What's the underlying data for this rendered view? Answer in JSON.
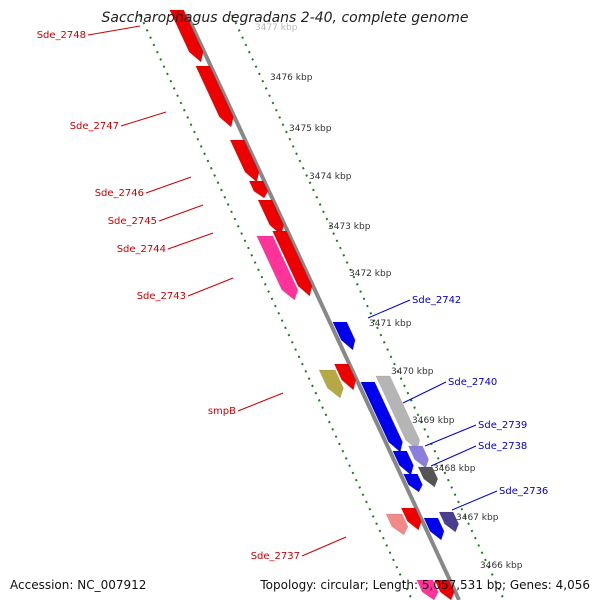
{
  "title": "Saccharophagus degradans 2-40, complete genome",
  "accession": "Accession: NC_007912",
  "summary": "Topology: circular; Length: 5,057,531 bp; Genes: 4,056",
  "colors": {
    "backbone": "#888888",
    "tick": "#1a7f1a",
    "label_forward": "#cc0000",
    "label_reverse": "#0000cc",
    "gene_red": "#ee0000",
    "gene_pink": "#ff3399",
    "gene_lightred": "#f28a8a",
    "gene_olive": "#b5a845",
    "gene_blue": "#0000ee",
    "gene_gray": "#b5b5b5",
    "gene_darkgray": "#555555",
    "gene_lavender": "#8a7fdc",
    "gene_navy": "#4a3f8f"
  },
  "kbp_labels": [
    "3477 kbp",
    "3476 kbp",
    "3475 kbp",
    "3474 kbp",
    "3473 kbp",
    "3472 kbp",
    "3471 kbp",
    "3470 kbp",
    "3469 kbp",
    "3468 kbp",
    "3467 kbp",
    "3466 kbp"
  ],
  "forward_labels": [
    "Sde_2748",
    "Sde_2747",
    "Sde_2746",
    "Sde_2745",
    "Sde_2744",
    "Sde_2743",
    "smpB",
    "Sde_2737"
  ],
  "reverse_labels": [
    "Sde_2742",
    "Sde_2740",
    "Sde_2739",
    "Sde_2738",
    "Sde_2736"
  ]
}
